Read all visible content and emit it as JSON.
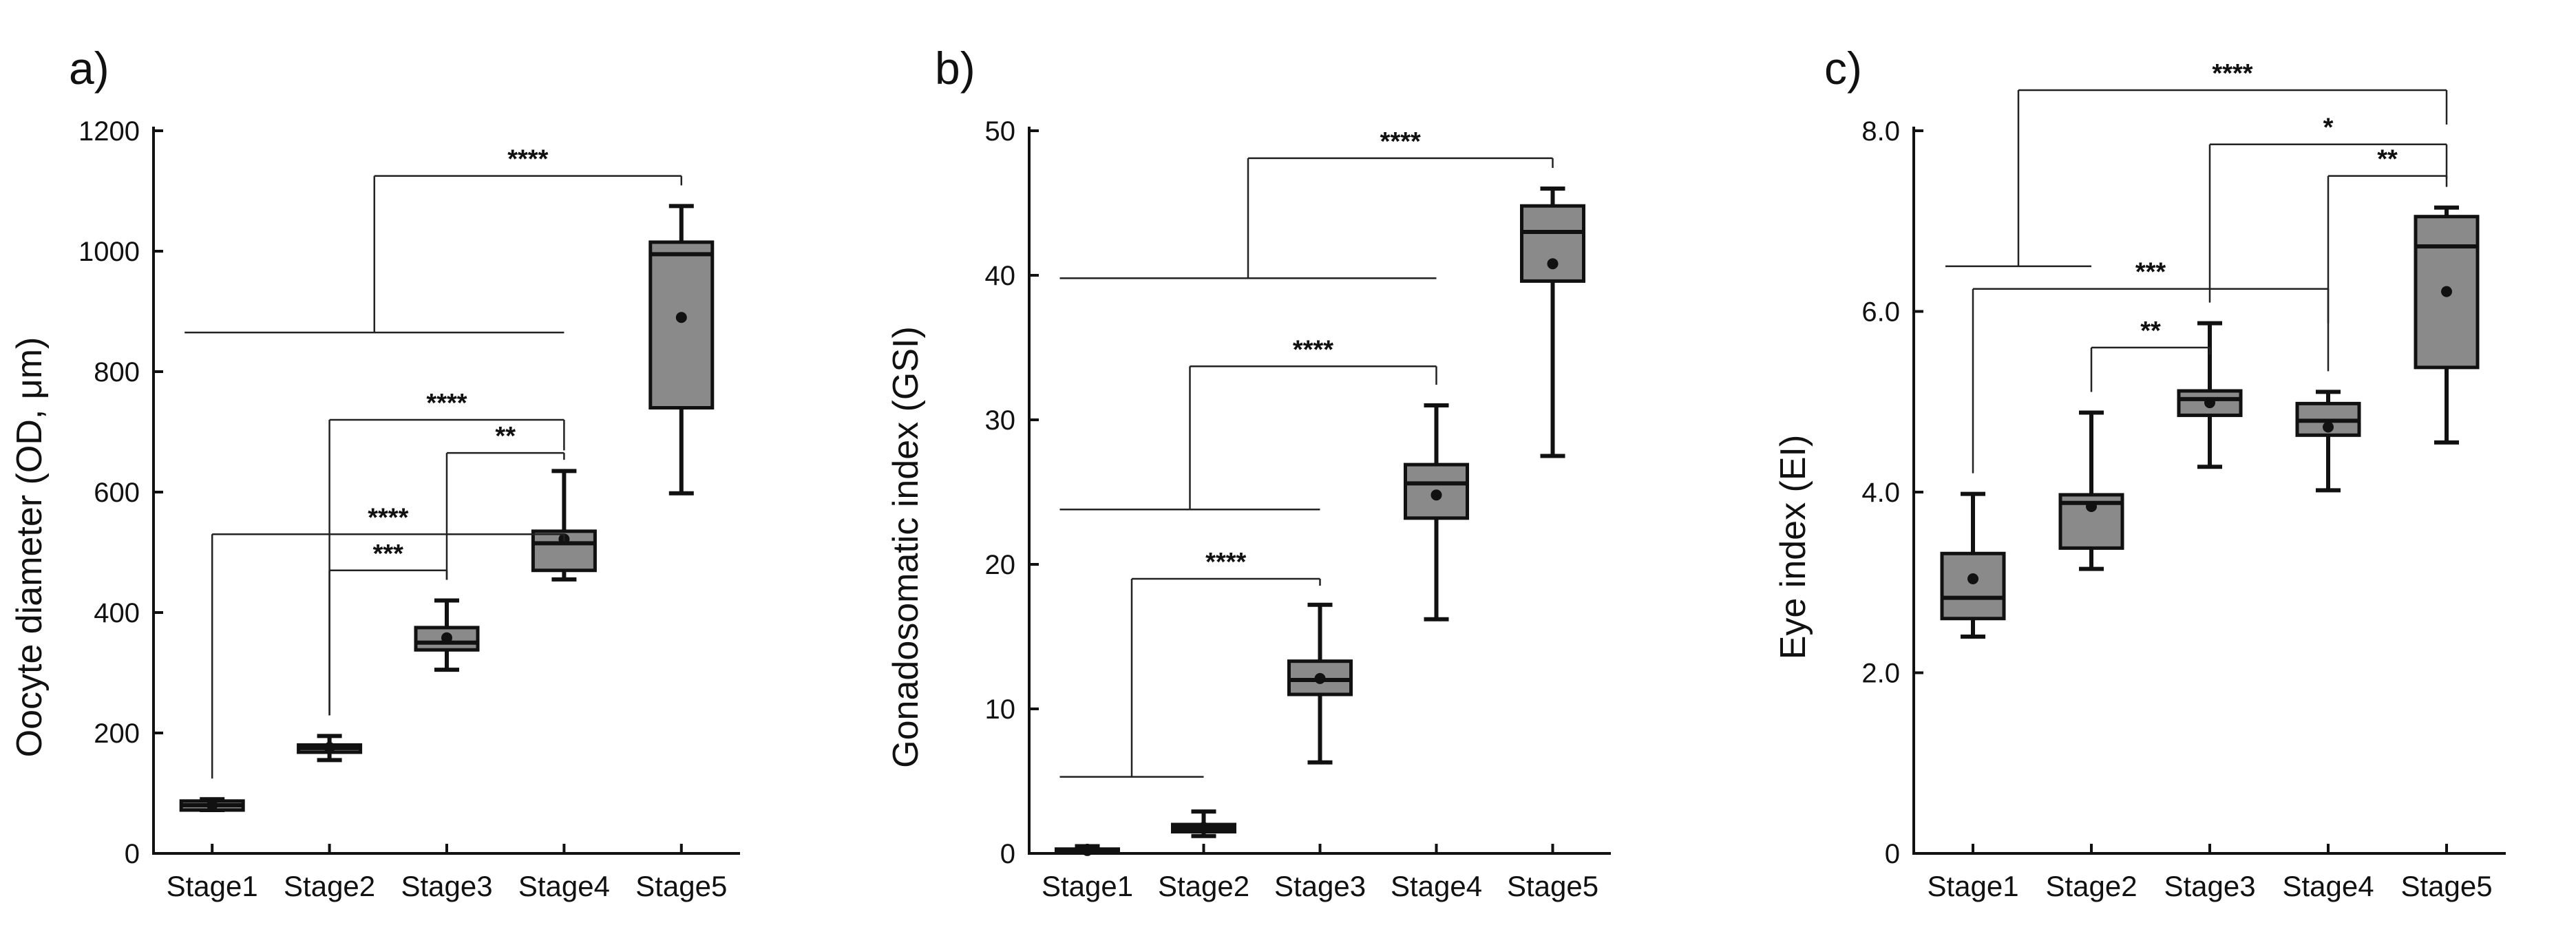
{
  "chart_data": [
    {
      "panel_label": "a)",
      "type": "box",
      "ylabel": "Oocyte diameter (OD, μm)",
      "ylim": [
        0,
        1200
      ],
      "yticks": [
        0,
        200,
        400,
        600,
        800,
        1000,
        1200
      ],
      "ytick_labels": [
        "0",
        "200",
        "400",
        "600",
        "800",
        "1000",
        "1200"
      ],
      "categories": [
        "Stage1",
        "Stage2",
        "Stage3",
        "Stage4",
        "Stage5"
      ],
      "boxes": [
        {
          "min": 72,
          "q1": 72,
          "median": 80,
          "q3": 87,
          "max": 90,
          "mean": 80
        },
        {
          "min": 155,
          "q1": 168,
          "median": 175,
          "q3": 180,
          "max": 195,
          "mean": 176
        },
        {
          "min": 305,
          "q1": 338,
          "median": 350,
          "q3": 375,
          "max": 420,
          "mean": 358
        },
        {
          "min": 455,
          "q1": 470,
          "median": 515,
          "q3": 535,
          "max": 635,
          "mean": 522
        },
        {
          "min": 598,
          "q1": 740,
          "median": 995,
          "q3": 1015,
          "max": 1075,
          "mean": 890
        }
      ],
      "comparisons": [
        {
          "from_index": 1,
          "to_index": 2,
          "label": "***",
          "level": 470
        },
        {
          "from_index": 0,
          "to_index": 3,
          "label": "****",
          "level": 530
        },
        {
          "from_index": 2,
          "to_index": 3,
          "label": "**",
          "level": 665
        },
        {
          "from_index": 1,
          "to_index": 3,
          "label": "****",
          "level": 720
        },
        {
          "group_from_index": 0,
          "group_to_index": 3,
          "to_index": 4,
          "label": "****",
          "group_level": 865,
          "level": 1125
        }
      ]
    },
    {
      "panel_label": "b)",
      "type": "box",
      "ylabel": "Gonadosomatic index (GSI)",
      "ylim": [
        0,
        50
      ],
      "yticks": [
        0,
        10,
        20,
        30,
        40,
        50
      ],
      "ytick_labels": [
        "0",
        "10",
        "20",
        "30",
        "40",
        "50"
      ],
      "categories": [
        "Stage1",
        "Stage2",
        "Stage3",
        "Stage4",
        "Stage5"
      ],
      "boxes": [
        {
          "min": 0.05,
          "q1": 0.1,
          "median": 0.2,
          "q3": 0.3,
          "max": 0.5,
          "mean": 0.2
        },
        {
          "min": 1.2,
          "q1": 1.5,
          "median": 1.75,
          "q3": 2.0,
          "max": 2.9,
          "mean": 1.8
        },
        {
          "min": 6.3,
          "q1": 11.0,
          "median": 12.0,
          "q3": 13.3,
          "max": 17.2,
          "mean": 12.1
        },
        {
          "min": 16.2,
          "q1": 23.2,
          "median": 25.6,
          "q3": 26.9,
          "max": 31.0,
          "mean": 24.8
        },
        {
          "min": 27.5,
          "q1": 39.6,
          "median": 43.0,
          "q3": 44.8,
          "max": 46.0,
          "mean": 40.8
        }
      ],
      "comparisons": [
        {
          "group_from_index": 0,
          "group_to_index": 1,
          "to_index": 2,
          "label": "****",
          "group_level": 5.3,
          "level": 19.0
        },
        {
          "group_from_index": 0,
          "group_to_index": 2,
          "to_index": 3,
          "label": "****",
          "group_level": 23.8,
          "level": 33.7
        },
        {
          "group_from_index": 0,
          "group_to_index": 3,
          "to_index": 4,
          "label": "****",
          "group_level": 39.8,
          "level": 48.1
        }
      ]
    },
    {
      "panel_label": "c)",
      "type": "box",
      "ylabel": "Eye index (EI)",
      "ylim": [
        0,
        8
      ],
      "yticks": [
        0,
        2,
        4,
        6,
        8
      ],
      "ytick_labels": [
        "0",
        "2.0",
        "4.0",
        "6.0",
        "8.0"
      ],
      "categories": [
        "Stage1",
        "Stage2",
        "Stage3",
        "Stage4",
        "Stage5"
      ],
      "boxes": [
        {
          "min": 2.4,
          "q1": 2.6,
          "median": 2.83,
          "q3": 3.32,
          "max": 3.98,
          "mean": 3.04
        },
        {
          "min": 3.15,
          "q1": 3.38,
          "median": 3.88,
          "q3": 3.97,
          "max": 4.88,
          "mean": 3.84
        },
        {
          "min": 4.28,
          "q1": 4.85,
          "median": 5.03,
          "q3": 5.12,
          "max": 5.87,
          "mean": 4.99
        },
        {
          "min": 4.02,
          "q1": 4.63,
          "median": 4.79,
          "q3": 4.98,
          "max": 5.11,
          "mean": 4.72
        },
        {
          "min": 4.55,
          "q1": 5.38,
          "median": 6.72,
          "q3": 7.05,
          "max": 7.15,
          "mean": 6.22
        }
      ],
      "comparisons": [
        {
          "from_index": 1,
          "to_index": 2,
          "label": "**",
          "level": 5.6
        },
        {
          "from_index": 0,
          "to_index": 3,
          "label": "***",
          "level": 6.25
        },
        {
          "from_index": 3,
          "to_index": 4,
          "label": "**",
          "level": 7.5
        },
        {
          "from_index": 2,
          "to_index": 4,
          "label": "*",
          "level": 7.85
        },
        {
          "group_from_index": 0,
          "group_to_index": 1,
          "to_index": 4,
          "label": "****",
          "group_level": 6.5,
          "level": 8.45
        }
      ]
    }
  ]
}
